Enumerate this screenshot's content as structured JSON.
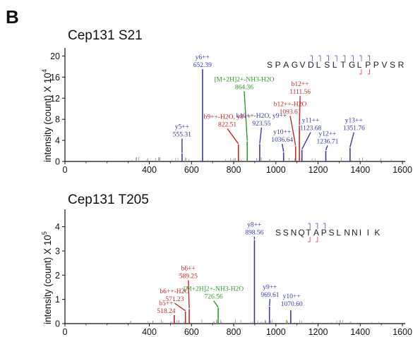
{
  "panel_label": "B",
  "chart_data": [
    {
      "type": "bar",
      "title": "Cep131 S21",
      "ylabel": "intensity (count) X 10",
      "ylabel_exp": "4",
      "xlim": [
        0,
        1600
      ],
      "ylim": [
        0,
        21
      ],
      "xticks": [
        0,
        400,
        600,
        800,
        1000,
        1200,
        1400,
        1600
      ],
      "xtick_labels": [
        "0",
        "400",
        "600",
        "800",
        "1000",
        "1200",
        "1400",
        "1600"
      ],
      "yticks": [
        0,
        4,
        8,
        12,
        16,
        20
      ],
      "ytick_labels": [
        "0",
        "4",
        "8",
        "12",
        "16",
        "20"
      ],
      "sequence": "SPAGVDLSLTGLPPVSR",
      "peaks": [
        {
          "mz": 555.31,
          "intensity": 1.5,
          "color": "#3a3aa8",
          "label": "y5++",
          "mz_text": "555.31",
          "lx": 555,
          "ly": 6.2
        },
        {
          "mz": 652.39,
          "intensity": 17.5,
          "color": "#3a3aa8",
          "label": "y6++",
          "mz_text": "652.39",
          "lx": 652,
          "ly": 19.4
        },
        {
          "mz": 822.51,
          "intensity": 3.2,
          "color": "#c62828",
          "label": "b9++-H2O, y8++",
          "mz_text": "822.51",
          "lx": 770,
          "ly": 8.1
        },
        {
          "mz": 864.36,
          "intensity": 3.8,
          "color": "#2e9a2e",
          "label": "[M+2H]2+-NH3-H2O",
          "mz_text": "864.36",
          "lx": 850,
          "ly": 15.2
        },
        {
          "mz": 923.55,
          "intensity": 3.3,
          "color": "#3a3aa8",
          "label": "b10++-H2O, y9++",
          "mz_text": "923.55",
          "lx": 932,
          "ly": 8.3
        },
        {
          "mz": 1036.64,
          "intensity": 1.7,
          "color": "#3a3aa8",
          "label": "y10++",
          "mz_text": "1036.64",
          "lx": 1030,
          "ly": 5.2
        },
        {
          "mz": 1093.61,
          "intensity": 2.9,
          "color": "#c62828",
          "label": "b12++-H2O",
          "mz_text": "1093.61",
          "lx": 1068,
          "ly": 10.5
        },
        {
          "mz": 1111.56,
          "intensity": 6.8,
          "color": "#c62828",
          "label": "b12++",
          "mz_text": "1111.56",
          "lx": 1115,
          "ly": 14.3
        },
        {
          "mz": 1123.68,
          "intensity": 2.2,
          "color": "#3a3aa8",
          "label": "y11++",
          "mz_text": "1123.68",
          "lx": 1165,
          "ly": 7.4
        },
        {
          "mz": 1236.71,
          "intensity": 2.0,
          "color": "#3a3aa8",
          "label": "y12++",
          "mz_text": "1236.71",
          "lx": 1245,
          "ly": 4.9
        },
        {
          "mz": 1351.76,
          "intensity": 2.6,
          "color": "#3a3aa8",
          "label": "y13++",
          "mz_text": "1351.76",
          "lx": 1370,
          "ly": 7.4
        }
      ]
    },
    {
      "type": "bar",
      "title": "Cep131 T205",
      "ylabel": "intensity (count) X 10",
      "ylabel_exp": "5",
      "xlim": [
        0,
        1600
      ],
      "ylim": [
        0,
        4.6
      ],
      "xticks": [
        0,
        400,
        600,
        800,
        1000,
        1200,
        1400,
        1600
      ],
      "xtick_labels": [
        "0",
        "400",
        "600",
        "800",
        "1000",
        "1200",
        "1400",
        "1600"
      ],
      "yticks": [
        0,
        1,
        2,
        3,
        4
      ],
      "ytick_labels": [
        "0",
        "1",
        "2",
        "3",
        "4"
      ],
      "sequence": "SSNQTAPSLNNIIK",
      "peaks": [
        {
          "mz": 518.24,
          "intensity": 0.35,
          "color": "#c62828",
          "label": "b5++",
          "mz_text": "518.24",
          "lx": 480,
          "ly": 0.75
        },
        {
          "mz": 571.23,
          "intensity": 0.5,
          "color": "#c62828",
          "label": "b6++-H2O",
          "mz_text": "571.23",
          "lx": 520,
          "ly": 1.25
        },
        {
          "mz": 589.25,
          "intensity": 0.6,
          "color": "#c62828",
          "label": "b6++",
          "mz_text": "589.25",
          "lx": 585,
          "ly": 2.2
        },
        {
          "mz": 726.56,
          "intensity": 0.65,
          "color": "#2e9a2e",
          "label": "[M+2H]2+-NH3-H2O",
          "mz_text": "726.56",
          "lx": 705,
          "ly": 1.35
        },
        {
          "mz": 898.56,
          "intensity": 3.45,
          "color": "#3a3aa8",
          "label": "y8++",
          "mz_text": "898.56",
          "lx": 898,
          "ly": 4.0
        },
        {
          "mz": 969.61,
          "intensity": 0.7,
          "color": "#3a3aa8",
          "label": "y9++",
          "mz_text": "969.61",
          "lx": 972,
          "ly": 1.42
        },
        {
          "mz": 1070.6,
          "intensity": 0.55,
          "color": "#3a3aa8",
          "label": "y10++",
          "mz_text": "1070.60",
          "lx": 1075,
          "ly": 1.05
        }
      ]
    }
  ]
}
